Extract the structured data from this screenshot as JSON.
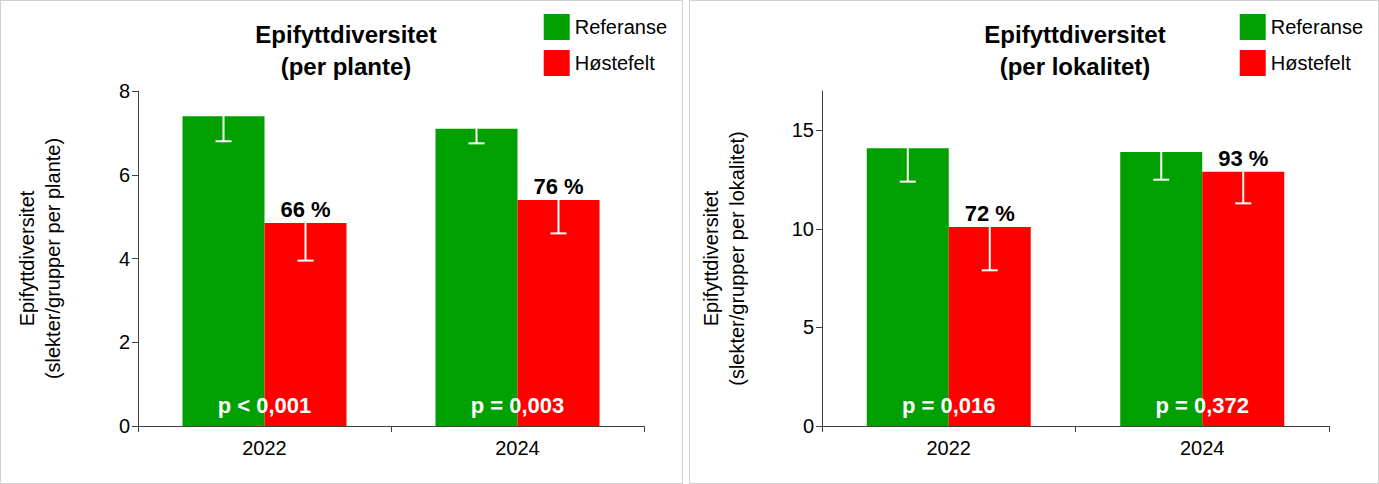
{
  "chart_data": [
    {
      "type": "bar",
      "title": "Epifyttdiversitet\n(per plante)",
      "y_label": "Epifyttdiversitet\n(slekter/grupper per plante)",
      "categories": [
        "2022",
        "2024"
      ],
      "series": [
        {
          "name": "Referanse",
          "color": "#00a000",
          "values": [
            7.4,
            7.1
          ],
          "errors": [
            0.6,
            0.35
          ]
        },
        {
          "name": "Høstefelt",
          "color": "#ff0000",
          "values": [
            4.85,
            5.4
          ],
          "errors": [
            0.9,
            0.8
          ]
        }
      ],
      "annotations": [
        {
          "category": "2022",
          "series": "Høstefelt",
          "text": "66 %"
        },
        {
          "category": "2024",
          "series": "Høstefelt",
          "text": "76 %"
        },
        {
          "category": "2022",
          "text": "p < 0,001"
        },
        {
          "category": "2024",
          "text": "p = 0,003"
        }
      ],
      "ylim": [
        0,
        8
      ],
      "yticks": [
        0,
        2,
        4,
        6,
        8
      ],
      "legend": "top-right",
      "grid": false,
      "data_labels": false
    },
    {
      "type": "bar",
      "title": "Epifyttdiversitet\n(per lokalitet)",
      "y_label": "Epifyttdiversitet\n(slekter/grupper per lokalitet)",
      "categories": [
        "2022",
        "2024"
      ],
      "series": [
        {
          "name": "Referanse",
          "color": "#00a000",
          "values": [
            14.1,
            13.9
          ],
          "errors": [
            1.7,
            1.4
          ]
        },
        {
          "name": "Høstefelt",
          "color": "#ff0000",
          "values": [
            10.1,
            12.9
          ],
          "errors": [
            2.2,
            1.6
          ]
        }
      ],
      "annotations": [
        {
          "category": "2022",
          "series": "Høstefelt",
          "text": "72 %"
        },
        {
          "category": "2024",
          "series": "Høstefelt",
          "text": "93 %"
        },
        {
          "category": "2022",
          "text": "p = 0,016"
        },
        {
          "category": "2024",
          "text": "p = 0,372"
        }
      ],
      "ylim": [
        0,
        17
      ],
      "yticks": [
        0,
        5,
        10,
        15
      ],
      "legend": "top-right",
      "grid": false,
      "data_labels": false
    }
  ]
}
